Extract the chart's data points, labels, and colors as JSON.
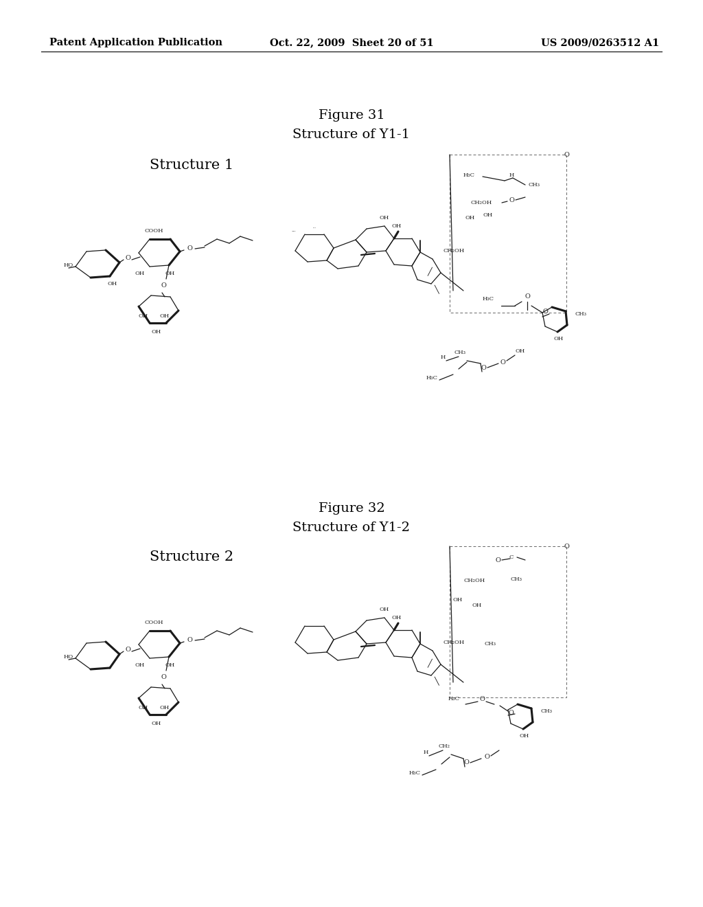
{
  "background_color": "#ffffff",
  "header_left": "Patent Application Publication",
  "header_center": "Oct. 22, 2009  Sheet 20 of 51",
  "header_right": "US 2009/0263512 A1",
  "header_fontsize": 10.5,
  "fig1_title_line1": "Figure 31",
  "fig1_title_line2": "Structure of Y1-1",
  "fig2_title_line1": "Figure 32",
  "fig2_title_line2": "Structure of Y1-2",
  "fig1_label": "Structure 1",
  "fig2_label": "Structure 2",
  "title_fontsize": 14,
  "label_fontsize": 15,
  "struct_color": "#1a1a1a"
}
